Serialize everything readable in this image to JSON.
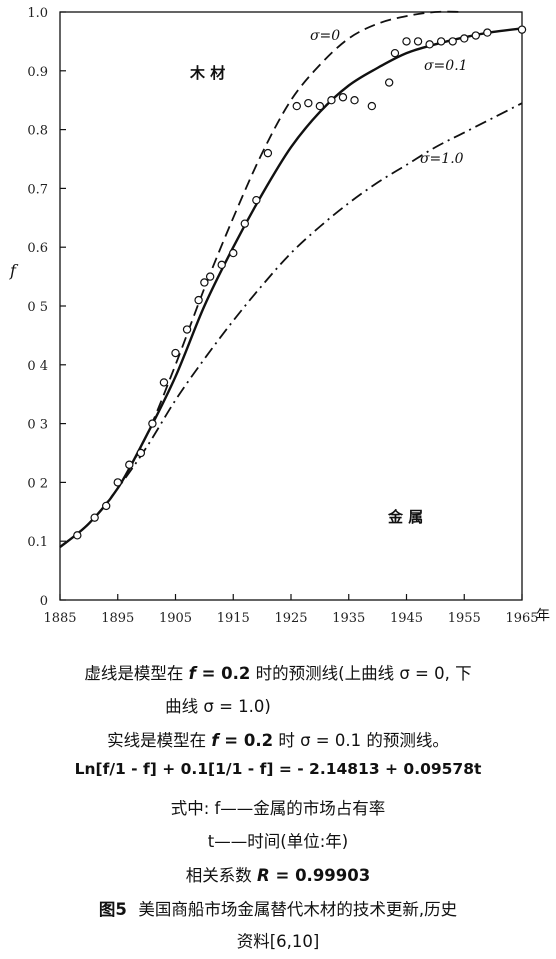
{
  "chart_data": {
    "type": "line",
    "xlabel": "年",
    "ylabel": "f",
    "xlim": [
      1885,
      1965
    ],
    "ylim": [
      0,
      1.0
    ],
    "x_ticks": [
      1885,
      1895,
      1905,
      1915,
      1925,
      1935,
      1945,
      1955,
      1965
    ],
    "x_tick_labels": [
      "1885",
      "1895",
      "1905",
      "1915",
      "1925",
      "1935",
      "1945",
      "1955",
      "1965"
    ],
    "y_ticks": [
      0,
      0.1,
      0.2,
      0.3,
      0.4,
      0.5,
      0.6,
      0.7,
      0.8,
      0.9,
      1.0
    ],
    "y_tick_labels": [
      "0",
      "0.1",
      "0 2",
      "0 3",
      "0 4",
      "0 5",
      "0.6",
      "0.7",
      "0.8",
      "0.9",
      "1.0"
    ],
    "region_labels": {
      "wood": "木 材",
      "metal": "金 属"
    },
    "series": [
      {
        "name": "σ=0",
        "style": "dashed",
        "x": [
          1885,
          1890,
          1895,
          1900,
          1905,
          1910,
          1915,
          1920,
          1925,
          1930,
          1935,
          1940,
          1945,
          1950,
          1955
        ],
        "y": [
          0.09,
          0.13,
          0.19,
          0.28,
          0.4,
          0.53,
          0.65,
          0.76,
          0.85,
          0.91,
          0.955,
          0.98,
          0.993,
          1.0,
          1.0
        ]
      },
      {
        "name": "σ=0.1",
        "style": "solid",
        "x": [
          1885,
          1890,
          1895,
          1900,
          1905,
          1910,
          1915,
          1920,
          1925,
          1930,
          1935,
          1940,
          1945,
          1950,
          1955,
          1960,
          1965
        ],
        "y": [
          0.09,
          0.13,
          0.19,
          0.28,
          0.38,
          0.5,
          0.6,
          0.69,
          0.77,
          0.83,
          0.875,
          0.905,
          0.93,
          0.945,
          0.957,
          0.966,
          0.972
        ]
      },
      {
        "name": "σ=1.0",
        "style": "dash-dot",
        "x": [
          1885,
          1890,
          1895,
          1900,
          1905,
          1910,
          1915,
          1920,
          1925,
          1930,
          1935,
          1940,
          1945,
          1950,
          1955,
          1960,
          1965
        ],
        "y": [
          0.09,
          0.13,
          0.19,
          0.26,
          0.34,
          0.41,
          0.475,
          0.535,
          0.59,
          0.635,
          0.675,
          0.71,
          0.74,
          0.77,
          0.795,
          0.82,
          0.845
        ]
      },
      {
        "name": "observed",
        "style": "points",
        "x": [
          1888,
          1891,
          1893,
          1895,
          1897,
          1899,
          1901,
          1903,
          1905,
          1907,
          1909,
          1910,
          1911,
          1913,
          1915,
          1917,
          1919,
          1921,
          1926,
          1928,
          1930,
          1932,
          1934,
          1936,
          1939,
          1942,
          1943,
          1945,
          1947,
          1949,
          1951,
          1953,
          1955,
          1957,
          1959,
          1965
        ],
        "y": [
          0.11,
          0.14,
          0.16,
          0.2,
          0.23,
          0.25,
          0.3,
          0.37,
          0.42,
          0.46,
          0.51,
          0.54,
          0.55,
          0.57,
          0.59,
          0.64,
          0.68,
          0.76,
          0.84,
          0.845,
          0.84,
          0.85,
          0.855,
          0.85,
          0.84,
          0.88,
          0.93,
          0.95,
          0.95,
          0.945,
          0.95,
          0.95,
          0.955,
          0.96,
          0.965,
          0.97
        ]
      }
    ],
    "curve_labels": {
      "s0": "σ=0",
      "s01": "σ=0.1",
      "s10": "σ=1.0"
    }
  },
  "caption": {
    "line1_pre": "虚线是模型在 ",
    "line1_f": "f",
    "line1_eq": " = 0.2",
    "line1_post": " 时的预测线(上曲线 σ = 0, 下",
    "line2": "曲线 σ = 1.0)",
    "line3_pre": "实线是模型在 ",
    "line3_f": "f",
    "line3_eq": " = 0.2",
    "line3_post": " 时   σ = 0.1 的预测线。",
    "line4": "Ln[f/1 - f] + 0.1[1/1 - f] = - 2.14813 + 0.09578t",
    "line5": "式中: f——金属的市场占有率",
    "line6": "t——时间(单位:年)",
    "line7_pre": "相关系数 ",
    "line7_R": "R",
    "line7_post": " = 0.99903",
    "title_num": "图5",
    "title_text": "美国商船市场金属替代木材的技术更新,历史",
    "title_line2": "资料[6,10]"
  }
}
